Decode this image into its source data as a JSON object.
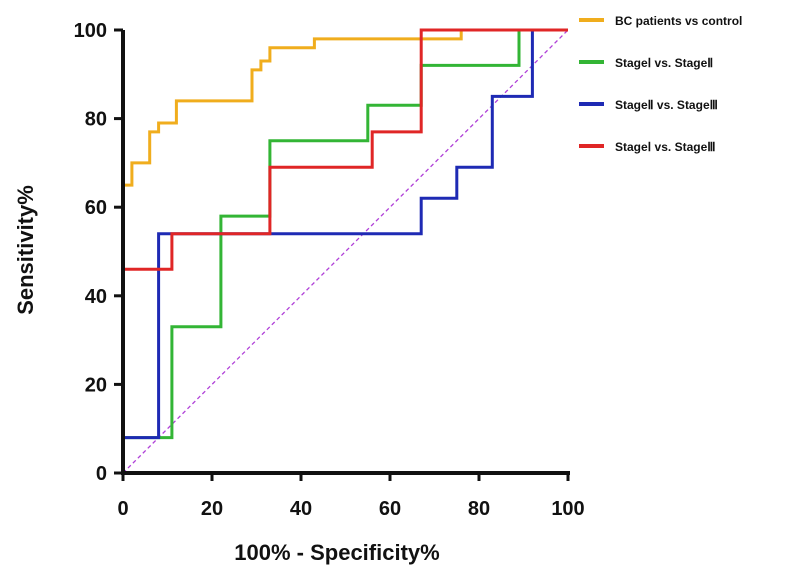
{
  "chart_data": {
    "type": "line",
    "xlabel": "100% - Specificity%",
    "ylabel": "Sensitivity%",
    "xlim": [
      0,
      100
    ],
    "ylim": [
      0,
      100
    ],
    "x_ticks": [
      "0",
      "20",
      "40",
      "60",
      "80",
      "100"
    ],
    "y_ticks": [
      "0",
      "20",
      "40",
      "60",
      "80",
      "100"
    ],
    "grid": false,
    "legend_position": "top-right",
    "reference_line": {
      "style": "dashed",
      "color": "#b040d8",
      "points": [
        [
          0,
          0
        ],
        [
          100,
          100
        ]
      ]
    },
    "series": [
      {
        "name": "BC patients vs control",
        "color": "#f0ad1d",
        "points": [
          [
            0,
            0
          ],
          [
            0,
            65
          ],
          [
            1,
            65
          ],
          [
            1,
            65
          ],
          [
            2,
            65
          ],
          [
            2,
            70
          ],
          [
            4,
            70
          ],
          [
            4,
            70
          ],
          [
            6,
            70
          ],
          [
            6,
            77
          ],
          [
            8,
            77
          ],
          [
            8,
            79
          ],
          [
            10,
            79
          ],
          [
            12,
            79
          ],
          [
            12,
            84
          ],
          [
            20,
            84
          ],
          [
            29,
            84
          ],
          [
            29,
            91
          ],
          [
            31,
            91
          ],
          [
            31,
            93
          ],
          [
            33,
            93
          ],
          [
            33,
            96
          ],
          [
            36,
            96
          ],
          [
            36,
            96
          ],
          [
            43,
            96
          ],
          [
            43,
            98
          ],
          [
            60,
            98
          ],
          [
            67,
            98
          ],
          [
            76,
            98
          ],
          [
            76,
            100
          ],
          [
            100,
            100
          ]
        ]
      },
      {
        "name": "StageⅠ vs. StageⅡ",
        "color": "#33b535",
        "points": [
          [
            0,
            0
          ],
          [
            0,
            8
          ],
          [
            11,
            8
          ],
          [
            11,
            33
          ],
          [
            22,
            33
          ],
          [
            22,
            58
          ],
          [
            33,
            58
          ],
          [
            33,
            75
          ],
          [
            55,
            75
          ],
          [
            55,
            83
          ],
          [
            67,
            83
          ],
          [
            67,
            92
          ],
          [
            89,
            92
          ],
          [
            89,
            100
          ],
          [
            100,
            100
          ]
        ]
      },
      {
        "name": "StageⅡ vs. StageⅢ",
        "color": "#1e2ab4",
        "points": [
          [
            0,
            0
          ],
          [
            0,
            8
          ],
          [
            8,
            8
          ],
          [
            8,
            54
          ],
          [
            67,
            54
          ],
          [
            67,
            62
          ],
          [
            75,
            62
          ],
          [
            75,
            69
          ],
          [
            83,
            69
          ],
          [
            83,
            85
          ],
          [
            92,
            85
          ],
          [
            92,
            100
          ],
          [
            100,
            100
          ]
        ]
      },
      {
        "name": "StageⅠ vs. StageⅢ",
        "color": "#e02626",
        "points": [
          [
            0,
            0
          ],
          [
            0,
            46
          ],
          [
            11,
            46
          ],
          [
            11,
            54
          ],
          [
            33,
            54
          ],
          [
            33,
            69
          ],
          [
            56,
            69
          ],
          [
            56,
            77
          ],
          [
            67,
            77
          ],
          [
            67,
            100
          ],
          [
            100,
            100
          ]
        ]
      }
    ]
  }
}
